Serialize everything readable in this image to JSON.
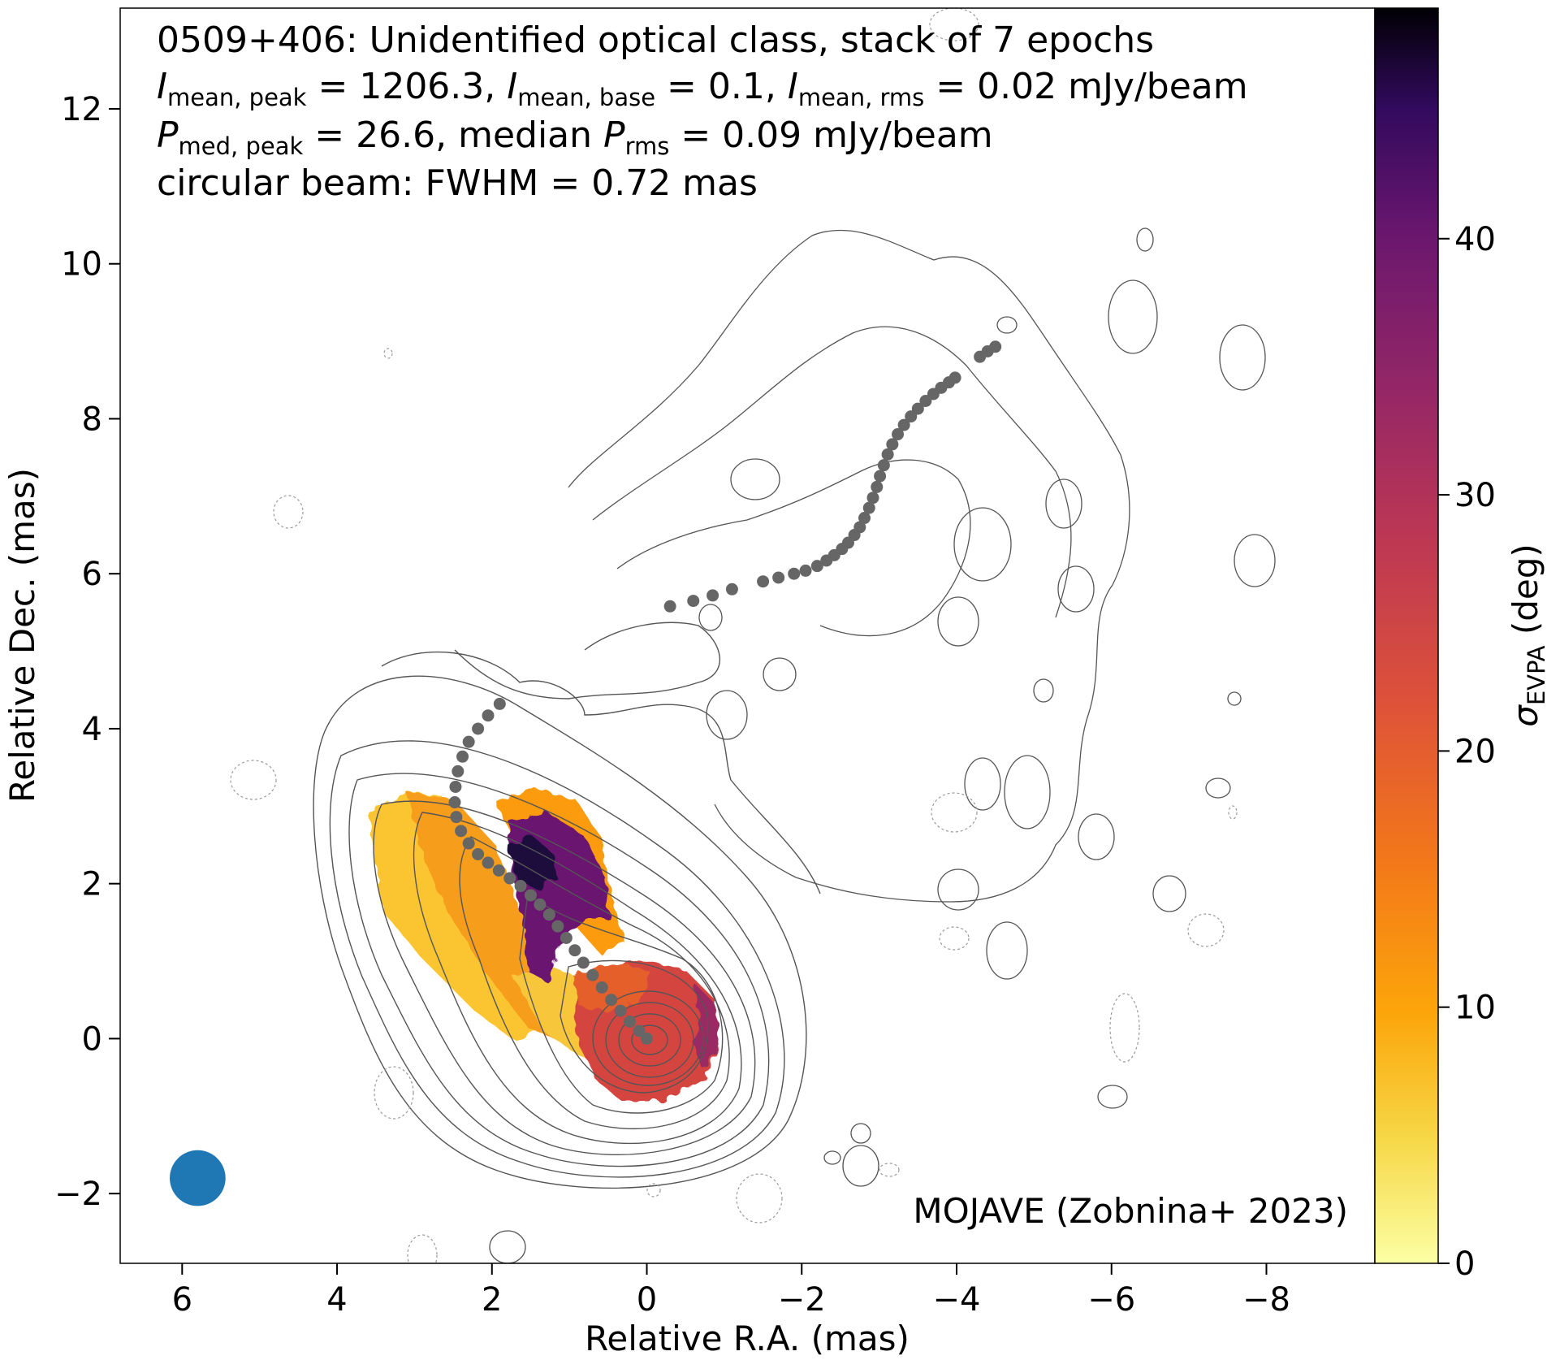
{
  "chart_data": {
    "type": "heatmap",
    "info": {
      "line1": "0509+406: Unidentified optical class, stack of 7 epochs",
      "line2": {
        "i1": "I",
        "s1": "mean, peak",
        "t1": " = 1206.3, ",
        "i2": "I",
        "s2": "mean, base",
        "t2": " = 0.1, ",
        "i3": "I",
        "s3": "mean, rms",
        "t3": " = 0.02 mJy/beam"
      },
      "line3": {
        "i1": "P",
        "s1": "med, peak",
        "t1": " = 26.6, median ",
        "i2": "P",
        "s2": "rms",
        "t2": " = 0.09 mJy/beam"
      },
      "line4": "circular beam: FWHM = 0.72 mas"
    },
    "credit": "MOJAVE (Zobnina+ 2023)",
    "xlabel": "Relative R.A. (mas)",
    "ylabel": "Relative Dec. (mas)",
    "colorbar_label": {
      "symbol": "σ",
      "sub": "EVPA",
      "rest": " (deg)"
    },
    "xlim": [
      6.8,
      -9.4
    ],
    "ylim": [
      -2.9,
      13.3
    ],
    "xticks": [
      6,
      4,
      2,
      0,
      -2,
      -4,
      -6,
      -8
    ],
    "yticks": [
      -2,
      0,
      2,
      4,
      6,
      8,
      10,
      12
    ],
    "colorbar": {
      "range": [
        0,
        49
      ],
      "ticks": [
        0,
        10,
        20,
        30,
        40
      ],
      "colormap": "inferno_r"
    },
    "beam": {
      "x": 5.8,
      "y": -1.8,
      "fwhm_mas": 0.72,
      "color": "#1f77b4"
    },
    "ridgeline_color": "#666666",
    "ridgeline": [
      [
        0.0,
        0.0
      ],
      [
        0.1,
        0.1
      ],
      [
        0.22,
        0.22
      ],
      [
        0.34,
        0.36
      ],
      [
        0.46,
        0.5
      ],
      [
        0.58,
        0.66
      ],
      [
        0.7,
        0.82
      ],
      [
        0.82,
        0.98
      ],
      [
        0.93,
        1.14
      ],
      [
        1.04,
        1.3
      ],
      [
        1.15,
        1.45
      ],
      [
        1.26,
        1.6
      ],
      [
        1.38,
        1.73
      ],
      [
        1.5,
        1.85
      ],
      [
        1.63,
        1.97
      ],
      [
        1.77,
        2.07
      ],
      [
        1.91,
        2.17
      ],
      [
        2.05,
        2.27
      ],
      [
        2.18,
        2.38
      ],
      [
        2.3,
        2.52
      ],
      [
        2.4,
        2.68
      ],
      [
        2.46,
        2.86
      ],
      [
        2.48,
        3.05
      ],
      [
        2.47,
        3.25
      ],
      [
        2.44,
        3.45
      ],
      [
        2.38,
        3.64
      ],
      [
        2.3,
        3.83
      ],
      [
        2.18,
        4.0
      ],
      [
        2.05,
        4.17
      ],
      [
        1.9,
        4.32
      ],
      [
        -0.3,
        5.58
      ],
      [
        -0.6,
        5.65
      ],
      [
        -0.85,
        5.72
      ],
      [
        -1.1,
        5.8
      ],
      [
        -1.5,
        5.9
      ],
      [
        -1.7,
        5.95
      ],
      [
        -1.9,
        6.0
      ],
      [
        -2.05,
        6.04
      ],
      [
        -2.2,
        6.1
      ],
      [
        -2.32,
        6.17
      ],
      [
        -2.42,
        6.24
      ],
      [
        -2.52,
        6.32
      ],
      [
        -2.6,
        6.4
      ],
      [
        -2.68,
        6.5
      ],
      [
        -2.75,
        6.6
      ],
      [
        -2.81,
        6.72
      ],
      [
        -2.87,
        6.85
      ],
      [
        -2.92,
        6.98
      ],
      [
        -2.97,
        7.12
      ],
      [
        -3.01,
        7.26
      ],
      [
        -3.06,
        7.4
      ],
      [
        -3.11,
        7.54
      ],
      [
        -3.17,
        7.67
      ],
      [
        -3.24,
        7.8
      ],
      [
        -3.32,
        7.92
      ],
      [
        -3.41,
        8.03
      ],
      [
        -3.5,
        8.13
      ],
      [
        -3.6,
        8.23
      ],
      [
        -3.7,
        8.32
      ],
      [
        -3.8,
        8.4
      ],
      [
        -3.9,
        8.47
      ],
      [
        -3.98,
        8.53
      ],
      [
        -4.3,
        8.8
      ],
      [
        -4.4,
        8.87
      ],
      [
        -4.5,
        8.93
      ]
    ]
  }
}
